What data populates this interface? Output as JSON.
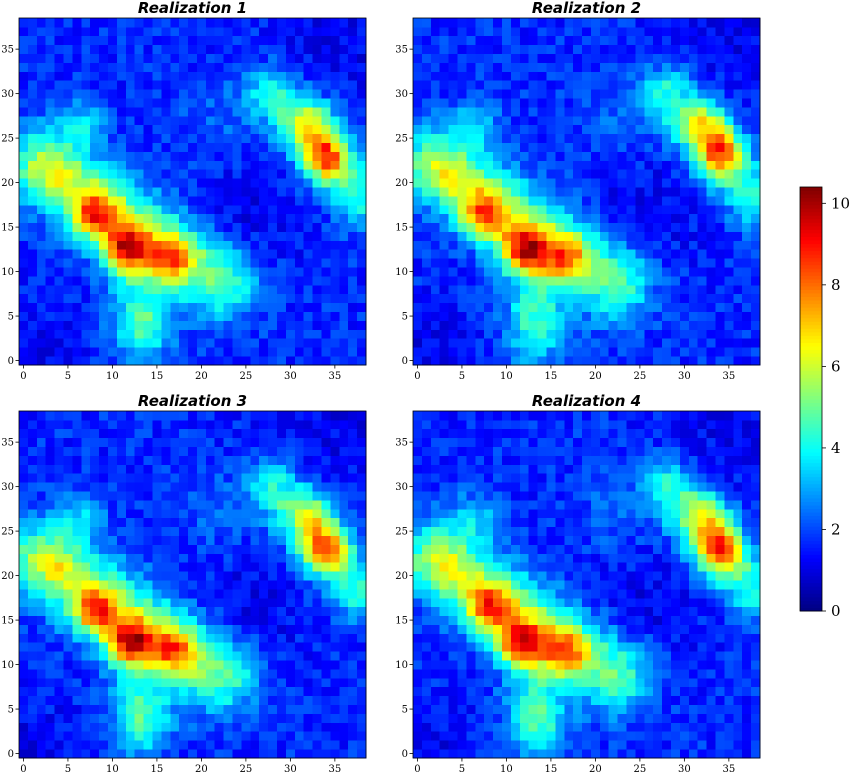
{
  "chart_data": [
    {
      "type": "heatmap",
      "title": "Realization 1",
      "grid_size": [
        39,
        39
      ],
      "xlim": [
        -0.5,
        38.5
      ],
      "ylim": [
        -0.5,
        38.5
      ],
      "xticks": [
        0,
        5,
        10,
        15,
        20,
        25,
        30,
        35
      ],
      "yticks": [
        0,
        5,
        10,
        15,
        20,
        25,
        30,
        35
      ],
      "hotspots": [
        {
          "x": 11.5,
          "y": 12.5,
          "peak": 10.3
        },
        {
          "x": 8,
          "y": 16.5,
          "peak": 8.8
        },
        {
          "x": 16.5,
          "y": 11.5,
          "peak": 8.0
        },
        {
          "x": 34,
          "y": 23,
          "peak": 9.0
        },
        {
          "x": 32.5,
          "y": 27,
          "peak": 7.2
        },
        {
          "x": 6.5,
          "y": 26.5,
          "peak": 6.3
        },
        {
          "x": 3.5,
          "y": 21,
          "peak": 6.0
        },
        {
          "x": 14.5,
          "y": 3.5,
          "peak": 5.5
        }
      ]
    },
    {
      "type": "heatmap",
      "title": "Realization 2",
      "grid_size": [
        39,
        39
      ],
      "xlim": [
        -0.5,
        38.5
      ],
      "ylim": [
        -0.5,
        38.5
      ],
      "xticks": [
        0,
        5,
        10,
        15,
        20,
        25,
        30,
        35
      ],
      "yticks": [
        0,
        5,
        10,
        15,
        20,
        25,
        30,
        35
      ],
      "hotspots": [
        {
          "x": 12,
          "y": 12.5,
          "peak": 10.0
        },
        {
          "x": 7.5,
          "y": 16.5,
          "peak": 8.7
        },
        {
          "x": 16.5,
          "y": 11.5,
          "peak": 7.8
        },
        {
          "x": 34,
          "y": 23.5,
          "peak": 8.7
        },
        {
          "x": 32.5,
          "y": 27,
          "peak": 7.0
        },
        {
          "x": 6.5,
          "y": 26.5,
          "peak": 6.2
        },
        {
          "x": 3.5,
          "y": 21,
          "peak": 6.0
        },
        {
          "x": 14.5,
          "y": 3.5,
          "peak": 5.3
        }
      ]
    },
    {
      "type": "heatmap",
      "title": "Realization 3",
      "grid_size": [
        39,
        39
      ],
      "xlim": [
        -0.5,
        38.5
      ],
      "ylim": [
        -0.5,
        38.5
      ],
      "xticks": [
        0,
        5,
        10,
        15,
        20,
        25,
        30,
        35
      ],
      "yticks": [
        0,
        5,
        10,
        15,
        20,
        25,
        30,
        35
      ],
      "hotspots": [
        {
          "x": 12,
          "y": 12.5,
          "peak": 10.2
        },
        {
          "x": 8,
          "y": 16,
          "peak": 8.8
        },
        {
          "x": 17,
          "y": 11.5,
          "peak": 8.0
        },
        {
          "x": 34,
          "y": 23,
          "peak": 8.6
        },
        {
          "x": 32.5,
          "y": 27,
          "peak": 7.0
        },
        {
          "x": 6.5,
          "y": 26.5,
          "peak": 6.0
        },
        {
          "x": 3.5,
          "y": 21,
          "peak": 6.0
        },
        {
          "x": 14.5,
          "y": 3.5,
          "peak": 5.4
        }
      ]
    },
    {
      "type": "heatmap",
      "title": "Realization 4",
      "grid_size": [
        39,
        39
      ],
      "xlim": [
        -0.5,
        38.5
      ],
      "ylim": [
        -0.5,
        38.5
      ],
      "xticks": [
        0,
        5,
        10,
        15,
        20,
        25,
        30,
        35
      ],
      "yticks": [
        0,
        5,
        10,
        15,
        20,
        25,
        30,
        35
      ],
      "hotspots": [
        {
          "x": 11.5,
          "y": 12.5,
          "peak": 10.0
        },
        {
          "x": 8,
          "y": 16.5,
          "peak": 8.6
        },
        {
          "x": 16.5,
          "y": 11.5,
          "peak": 8.0
        },
        {
          "x": 34,
          "y": 23,
          "peak": 9.0
        },
        {
          "x": 32.5,
          "y": 27,
          "peak": 7.2
        },
        {
          "x": 6.5,
          "y": 26.5,
          "peak": 6.2
        },
        {
          "x": 3.5,
          "y": 21,
          "peak": 6.0
        },
        {
          "x": 14.5,
          "y": 3.5,
          "peak": 5.5
        }
      ]
    }
  ],
  "colorbar": {
    "colormap": "jet",
    "vmin": 0,
    "vmax": 10.4,
    "ticks": [
      0,
      2,
      4,
      6,
      8,
      10
    ]
  }
}
